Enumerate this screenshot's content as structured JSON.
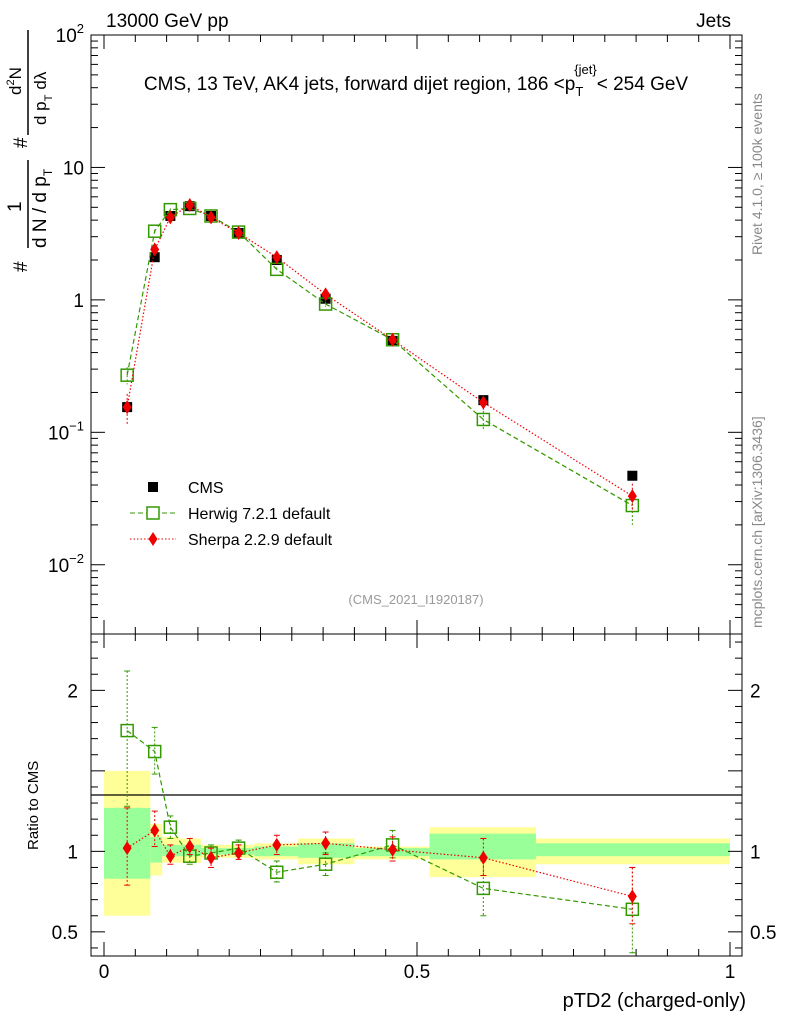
{
  "header": {
    "left": "13000 GeV pp",
    "right": "Jets"
  },
  "side_labels": {
    "rivet": "Rivet 4.1.0, ≥ 100k events",
    "mcplots": "mcplots.cern.ch [arXiv:1306.3436]"
  },
  "chart_data": {
    "type": "scatter",
    "title": "CMS, 13 TeV, AK4 jets, forward dijet region, 186 <p_T^{jet}< 254 GeV",
    "title_parts": {
      "main": "CMS, 13 TeV, AK4 jets, forward dijet region, 186 <p",
      "sub": "T",
      "sup": "{jet}",
      "tail": "< 254 GeV"
    },
    "xlabel": "pTD2 (charged-only)",
    "ylabel": "1/(dN/dp_T) d²N/(dp_T dλ)",
    "ylabel_parts": {
      "hash": "#",
      "one": "1",
      "den": "d N / d p",
      "den_sub": "T",
      "num": "d",
      "num_sup": "2",
      "num_n": "N",
      "num_dp": "d p",
      "num_dp_sub": "T",
      "num_dl": "dλ"
    },
    "xlim": [
      0,
      1
    ],
    "ylim": [
      0.003,
      100
    ],
    "yscale": "log",
    "watermark": "(CMS_2021_I1920187)",
    "legend_position": "bottom-left",
    "x_ticks": [
      "0",
      "0.5",
      "1"
    ],
    "y_ticks": [
      {
        "base": "10",
        "exp": "2",
        "value": 100
      },
      {
        "base": "10",
        "exp": "",
        "value": 10
      },
      {
        "base": "1",
        "exp": "",
        "value": 1
      },
      {
        "base": "10",
        "exp": "−1",
        "value": 0.1
      },
      {
        "base": "10",
        "exp": "−2",
        "value": 0.01
      }
    ],
    "series": [
      {
        "name": "CMS",
        "color": "#000000",
        "marker": "square",
        "x": [
          0.037,
          0.081,
          0.106,
          0.137,
          0.171,
          0.215,
          0.276,
          0.354,
          0.461,
          0.606,
          0.844
        ],
        "y": [
          0.155,
          2.1,
          4.3,
          5.1,
          4.3,
          3.2,
          2.0,
          1.02,
          0.49,
          0.175,
          0.047
        ]
      },
      {
        "name": "Herwig 7.2.1 default",
        "color": "#339900",
        "marker": "open-square",
        "dash": "dashed",
        "x": [
          0.037,
          0.081,
          0.106,
          0.137,
          0.171,
          0.215,
          0.276,
          0.354,
          0.461,
          0.606,
          0.844
        ],
        "y": [
          0.27,
          3.3,
          4.8,
          4.9,
          4.3,
          3.25,
          1.7,
          0.93,
          0.5,
          0.125,
          0.028
        ],
        "yerr": [
          0.04,
          0.1,
          0.1,
          0.1,
          0.1,
          0.08,
          0.06,
          0.04,
          0.03,
          0.02,
          0.008
        ]
      },
      {
        "name": "Sherpa 2.2.9 default",
        "color": "#ee0000",
        "marker": "diamond",
        "dash": "dotted",
        "x": [
          0.037,
          0.081,
          0.106,
          0.137,
          0.171,
          0.215,
          0.276,
          0.354,
          0.461,
          0.606,
          0.844
        ],
        "y": [
          0.155,
          2.4,
          4.2,
          5.2,
          4.2,
          3.2,
          2.1,
          1.1,
          0.5,
          0.168,
          0.033
        ],
        "yerr": [
          0.04,
          0.1,
          0.1,
          0.1,
          0.1,
          0.08,
          0.06,
          0.04,
          0.03,
          0.02,
          0.008
        ]
      }
    ],
    "ratio": {
      "ylabel": "Ratio to CMS",
      "ylim": [
        0.35,
        2.35
      ],
      "y_ticks": [
        "2",
        "1",
        "0.5"
      ],
      "y_tick_values": [
        2,
        1,
        0.5
      ],
      "bands": [
        {
          "x0": 0.0,
          "x1": 0.074,
          "yel": [
            0.6,
            1.5
          ],
          "grn": [
            0.83,
            1.27
          ]
        },
        {
          "x0": 0.074,
          "x1": 0.093,
          "yel": [
            0.85,
            1.17
          ],
          "grn": [
            0.93,
            1.09
          ]
        },
        {
          "x0": 0.093,
          "x1": 0.12,
          "yel": [
            0.93,
            1.09
          ],
          "grn": [
            0.97,
            1.04
          ]
        },
        {
          "x0": 0.12,
          "x1": 0.155,
          "yel": [
            0.93,
            1.08
          ],
          "grn": [
            0.97,
            1.04
          ]
        },
        {
          "x0": 0.155,
          "x1": 0.19,
          "yel": [
            0.96,
            1.04
          ],
          "grn": [
            0.98,
            1.02
          ]
        },
        {
          "x0": 0.19,
          "x1": 0.24,
          "yel": [
            0.96,
            1.04
          ],
          "grn": [
            0.98,
            1.02
          ]
        },
        {
          "x0": 0.24,
          "x1": 0.31,
          "yel": [
            0.95,
            1.05
          ],
          "grn": [
            0.97,
            1.03
          ]
        },
        {
          "x0": 0.31,
          "x1": 0.4,
          "yel": [
            0.92,
            1.08
          ],
          "grn": [
            0.96,
            1.05
          ]
        },
        {
          "x0": 0.4,
          "x1": 0.52,
          "yel": [
            0.95,
            1.03
          ],
          "grn": [
            0.97,
            1.02
          ]
        },
        {
          "x0": 0.52,
          "x1": 0.69,
          "yel": [
            0.84,
            1.15
          ],
          "grn": [
            0.95,
            1.11
          ]
        },
        {
          "x0": 0.69,
          "x1": 1.0,
          "yel": [
            0.92,
            1.08
          ],
          "grn": [
            0.97,
            1.05
          ]
        }
      ],
      "series": [
        {
          "name": "Herwig 7.2.1 default",
          "x": [
            0.037,
            0.081,
            0.106,
            0.137,
            0.171,
            0.215,
            0.276,
            0.354,
            0.461,
            0.606,
            0.844
          ],
          "y": [
            1.75,
            1.62,
            1.15,
            0.97,
            0.99,
            1.02,
            0.87,
            0.92,
            1.04,
            0.77,
            0.64
          ],
          "lo": [
            1.28,
            1.48,
            1.08,
            0.92,
            0.95,
            0.97,
            0.81,
            0.85,
            0.96,
            0.6,
            0.37
          ],
          "hi": [
            2.12,
            1.77,
            1.22,
            1.02,
            1.04,
            1.07,
            0.94,
            0.99,
            1.13,
            0.94,
            0.9
          ]
        },
        {
          "name": "Sherpa 2.2.9 default",
          "x": [
            0.037,
            0.081,
            0.106,
            0.137,
            0.171,
            0.215,
            0.276,
            0.354,
            0.461,
            0.606,
            0.844
          ],
          "y": [
            1.02,
            1.13,
            0.97,
            1.03,
            0.96,
            0.99,
            1.04,
            1.05,
            1.01,
            0.96,
            0.72
          ],
          "lo": [
            0.79,
            1.03,
            0.92,
            0.98,
            0.9,
            0.95,
            0.98,
            0.98,
            0.94,
            0.85,
            0.55
          ],
          "hi": [
            1.27,
            1.25,
            1.04,
            1.08,
            1.02,
            1.04,
            1.1,
            1.12,
            1.09,
            1.08,
            0.9
          ]
        }
      ]
    }
  }
}
